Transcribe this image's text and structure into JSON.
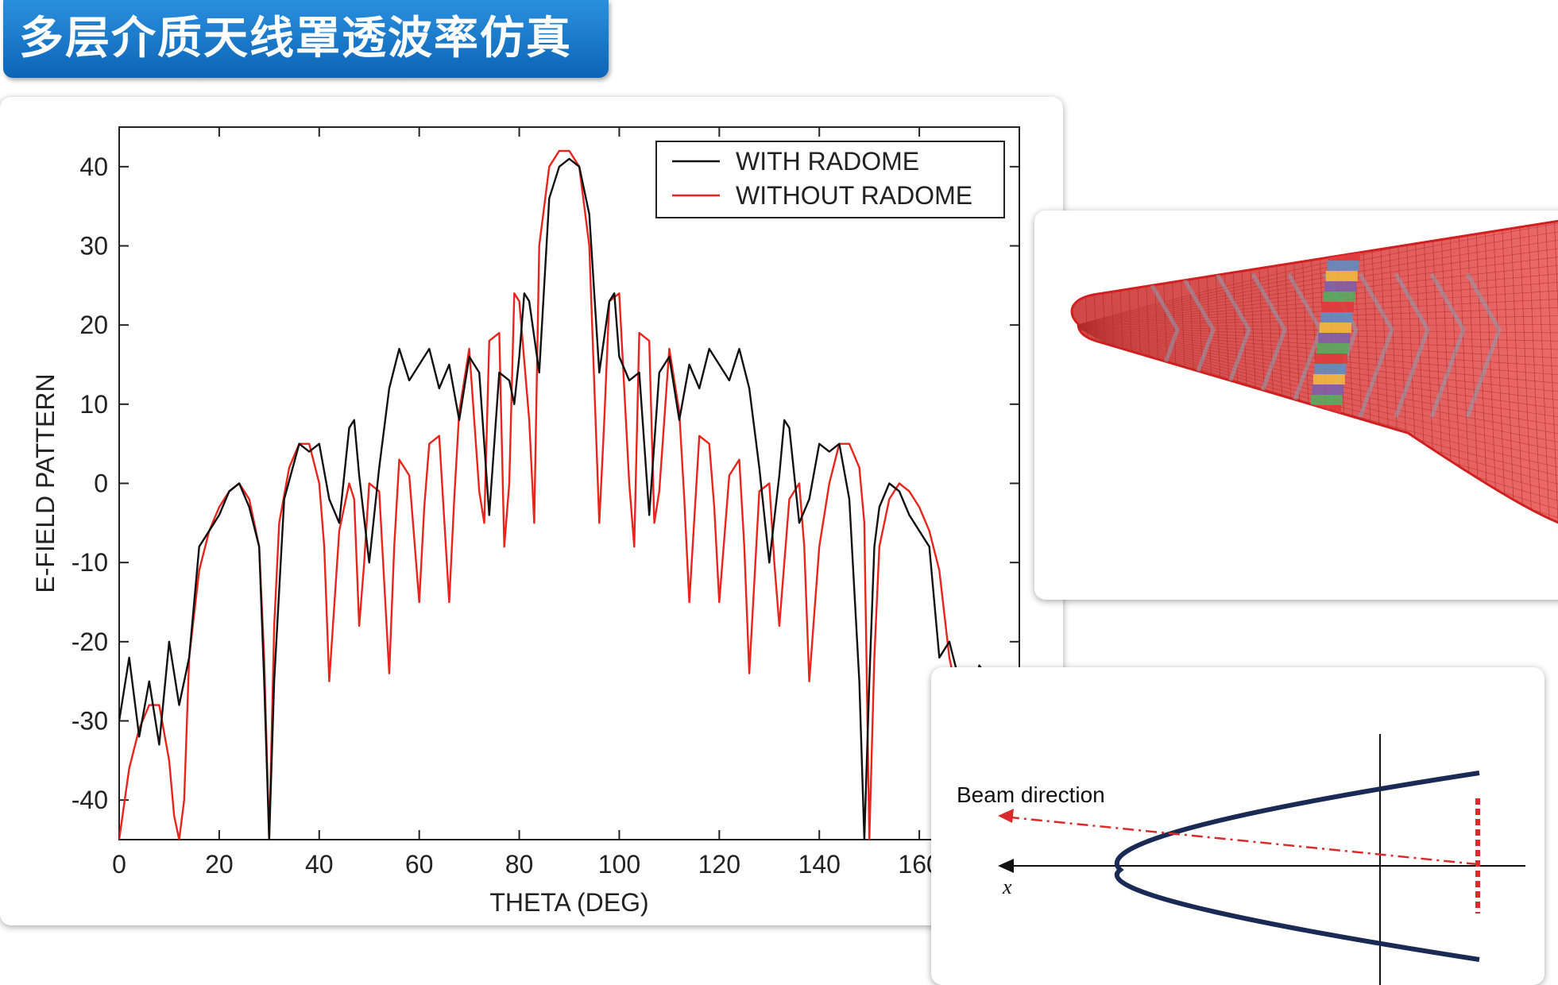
{
  "title": "多层介质天线罩透波率仿真",
  "colors": {
    "banner": "#1573c8",
    "with_radome": "#111111",
    "without_radome": "#e8241c",
    "cone_mesh": "#e03a3a",
    "beam_curve": "#1b2a55",
    "beam_dash": "#d92b2b"
  },
  "chart_data": {
    "type": "line",
    "title": "",
    "xlabel": "THETA (DEG)",
    "ylabel": "E-FIELD PATTERN",
    "xlim": [
      0,
      180
    ],
    "ylim": [
      -45,
      45
    ],
    "xticks": [
      0,
      20,
      40,
      60,
      80,
      100,
      120,
      140,
      160
    ],
    "xtick_labels": [
      "0",
      "20",
      "40",
      "60",
      "80",
      "100",
      "120",
      "140",
      "160"
    ],
    "yticks": [
      40,
      30,
      20,
      10,
      0,
      -10,
      -20,
      -30,
      -40
    ],
    "ytick_labels": [
      "40",
      "30",
      "20",
      "10",
      "0",
      "-10",
      "-20",
      "-30",
      "-40"
    ],
    "grid": false,
    "legend_position": "top-right",
    "series": [
      {
        "name": "WITH RADOME",
        "color": "#111111",
        "x": [
          0,
          2,
          4,
          6,
          8,
          10,
          12,
          14,
          16,
          18,
          20,
          22,
          24,
          26,
          28,
          29,
          30,
          31,
          33,
          36,
          38,
          40,
          42,
          44,
          46,
          47,
          48,
          50,
          52,
          54,
          56,
          58,
          60,
          62,
          64,
          66,
          68,
          70,
          72,
          74,
          76,
          78,
          79,
          80,
          81,
          82,
          84,
          86,
          88,
          90,
          92,
          94,
          96,
          98,
          99,
          100,
          102,
          104,
          106,
          108,
          110,
          112,
          114,
          116,
          118,
          120,
          122,
          124,
          126,
          128,
          130,
          132,
          133,
          134,
          136,
          138,
          140,
          142,
          144,
          146,
          148,
          149,
          150,
          151,
          152,
          154,
          156,
          158,
          160,
          162,
          164,
          166,
          168,
          170,
          172,
          174,
          176,
          178,
          180
        ],
        "y": [
          -30,
          -22,
          -32,
          -25,
          -33,
          -20,
          -28,
          -22,
          -8,
          -6,
          -4,
          -1,
          0,
          -3,
          -8,
          -25,
          -45,
          -25,
          -2,
          5,
          4,
          5,
          -2,
          -5,
          7,
          8,
          1,
          -10,
          2,
          12,
          17,
          13,
          15,
          17,
          12,
          15,
          8,
          16,
          14,
          -4,
          14,
          13,
          10,
          16,
          24,
          23,
          14,
          36,
          40,
          41,
          40,
          34,
          14,
          23,
          24,
          16,
          13,
          14,
          -4,
          14,
          16,
          8,
          15,
          12,
          17,
          15,
          13,
          17,
          12,
          2,
          -10,
          1,
          8,
          7,
          -5,
          -2,
          5,
          4,
          5,
          -2,
          -25,
          -45,
          -25,
          -8,
          -3,
          0,
          -1,
          -4,
          -6,
          -8,
          -22,
          -20,
          -25,
          -30,
          -23,
          -25,
          -28,
          -30,
          -30
        ]
      },
      {
        "name": "WITHOUT RADOME",
        "color": "#e8241c",
        "x": [
          0,
          2,
          4,
          6,
          8,
          10,
          11,
          12,
          13,
          14,
          16,
          18,
          20,
          22,
          24,
          26,
          28,
          29,
          30,
          31,
          32,
          34,
          36,
          38,
          40,
          41,
          42,
          44,
          46,
          47,
          48,
          49,
          50,
          52,
          54,
          55,
          56,
          58,
          60,
          61,
          62,
          64,
          66,
          67,
          68,
          70,
          72,
          73,
          74,
          76,
          77,
          78,
          79,
          80,
          82,
          83,
          84,
          86,
          88,
          90,
          92,
          94,
          96,
          97,
          98,
          100,
          102,
          103,
          104,
          106,
          107,
          108,
          110,
          112,
          113,
          114,
          116,
          118,
          119,
          120,
          122,
          124,
          125,
          126,
          128,
          130,
          131,
          132,
          134,
          136,
          137,
          138,
          140,
          142,
          144,
          146,
          148,
          149,
          150,
          151,
          152,
          154,
          156,
          158,
          160,
          162,
          164,
          166,
          168,
          170,
          172,
          174,
          176,
          178,
          180
        ],
        "y": [
          -45,
          -36,
          -31,
          -28,
          -28,
          -35,
          -42,
          -45,
          -40,
          -22,
          -11,
          -6,
          -3,
          -1,
          0,
          -2,
          -8,
          -22,
          -45,
          -18,
          -5,
          2,
          5,
          5,
          0,
          -8,
          -25,
          -6,
          0,
          -2,
          -18,
          -10,
          0,
          -1,
          -24,
          -8,
          3,
          1,
          -15,
          -3,
          5,
          6,
          -15,
          -2,
          9,
          17,
          -1,
          -5,
          18,
          19,
          -8,
          0,
          24,
          23,
          8,
          -5,
          30,
          40,
          42,
          42,
          40,
          30,
          -5,
          8,
          23,
          24,
          0,
          -8,
          19,
          18,
          -5,
          -1,
          17,
          9,
          -2,
          -15,
          6,
          5,
          -3,
          -15,
          1,
          3,
          -8,
          -24,
          -1,
          0,
          -10,
          -18,
          -2,
          0,
          -8,
          -25,
          -8,
          0,
          5,
          5,
          2,
          -5,
          -45,
          -22,
          -8,
          -2,
          0,
          -1,
          -3,
          -6,
          -11,
          -22,
          -28,
          -30,
          -32,
          -34,
          -36,
          -38,
          -40
        ]
      }
    ]
  },
  "cone_figure": {
    "mesh_colors": [
      "#e03a3a",
      "#5a8fc8",
      "#f0c040",
      "#7a5fb0",
      "#4cb060"
    ]
  },
  "beam_figure": {
    "label": "Beam direction",
    "axis_label": "x"
  }
}
